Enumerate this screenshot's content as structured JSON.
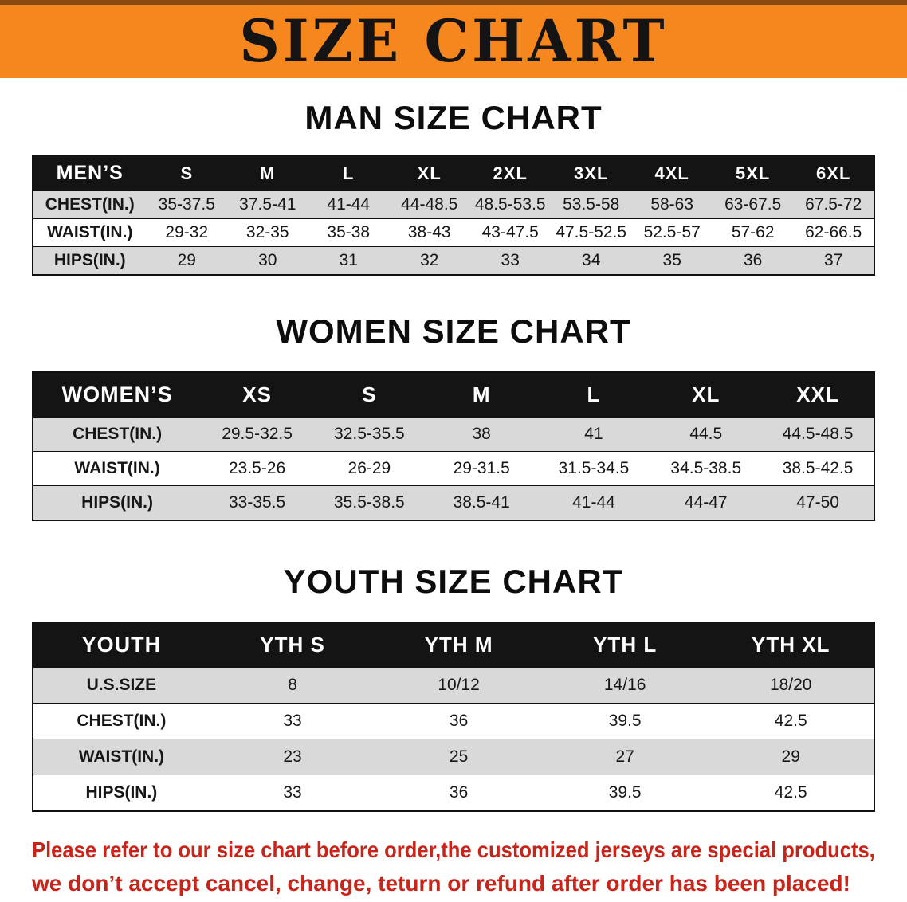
{
  "banner": {
    "title": "SIZE CHART"
  },
  "colors": {
    "banner_bg": "#f6871f",
    "banner_top_edge": "#8a4a12",
    "table_header_bg": "#141414",
    "row_alt": "#d9d9d9",
    "table_border": "#101010",
    "disclaimer_red": "#c9241a"
  },
  "sections": {
    "men": {
      "heading": "MAN SIZE CHART",
      "table": {
        "header": [
          "MEN’S",
          "S",
          "M",
          "L",
          "XL",
          "2XL",
          "3XL",
          "4XL",
          "5XL",
          "6XL"
        ],
        "rows": [
          [
            "CHEST(IN.)",
            "35-37.5",
            "37.5-41",
            "41-44",
            "44-48.5",
            "48.5-53.5",
            "53.5-58",
            "58-63",
            "63-67.5",
            "67.5-72"
          ],
          [
            "WAIST(IN.)",
            "29-32",
            "32-35",
            "35-38",
            "38-43",
            "43-47.5",
            "47.5-52.5",
            "52.5-57",
            "57-62",
            "62-66.5"
          ],
          [
            "HIPS(IN.)",
            "29",
            "30",
            "31",
            "32",
            "33",
            "34",
            "35",
            "36",
            "37"
          ]
        ]
      }
    },
    "women": {
      "heading": "WOMEN SIZE CHART",
      "table": {
        "header": [
          "WOMEN’S",
          "XS",
          "S",
          "M",
          "L",
          "XL",
          "XXL"
        ],
        "rows": [
          [
            "CHEST(IN.)",
            "29.5-32.5",
            "32.5-35.5",
            "38",
            "41",
            "44.5",
            "44.5-48.5"
          ],
          [
            "WAIST(IN.)",
            "23.5-26",
            "26-29",
            "29-31.5",
            "31.5-34.5",
            "34.5-38.5",
            "38.5-42.5"
          ],
          [
            "HIPS(IN.)",
            "33-35.5",
            "35.5-38.5",
            "38.5-41",
            "41-44",
            "44-47",
            "47-50"
          ]
        ]
      }
    },
    "youth": {
      "heading": "YOUTH SIZE CHART",
      "table": {
        "header": [
          "YOUTH",
          "YTH S",
          "YTH M",
          "YTH L",
          "YTH XL"
        ],
        "rows": [
          [
            "U.S.SIZE",
            "8",
            "10/12",
            "14/16",
            "18/20"
          ],
          [
            "CHEST(IN.)",
            "33",
            "36",
            "39.5",
            "42.5"
          ],
          [
            "WAIST(IN.)",
            "23",
            "25",
            "27",
            "29"
          ],
          [
            "HIPS(IN.)",
            "33",
            "36",
            "39.5",
            "42.5"
          ]
        ]
      }
    }
  },
  "disclaimer": {
    "line1": "Please refer to our size chart before order,the customized jerseys are special products,",
    "line2": "we don’t accept cancel, change, teturn or refund after order has been placed!"
  }
}
